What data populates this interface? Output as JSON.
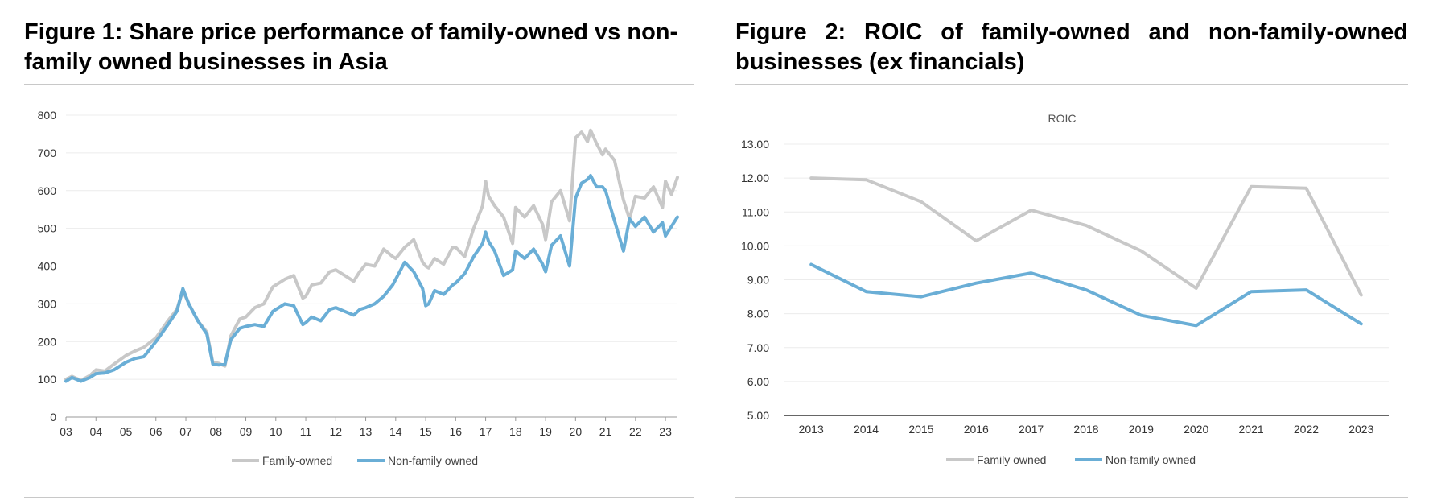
{
  "figure1": {
    "title": "Figure 1: Share price performance of family-owned vs non-family owned businesses in Asia",
    "colors": {
      "family": "#c8c8c8",
      "nonfamily": "#6aaed6"
    },
    "chart_data": {
      "type": "line",
      "x_tick_labels": [
        "03",
        "04",
        "05",
        "06",
        "07",
        "08",
        "09",
        "10",
        "11",
        "12",
        "13",
        "14",
        "15",
        "16",
        "17",
        "18",
        "19",
        "20",
        "21",
        "22",
        "23"
      ],
      "x_range": [
        2003.0,
        2023.4
      ],
      "ylim": [
        0,
        800
      ],
      "y_ticks": [
        0,
        100,
        200,
        300,
        400,
        500,
        600,
        700,
        800
      ],
      "grid": true,
      "legend_position": "bottom",
      "series": [
        {
          "name": "Family-owned",
          "x": [
            2003.0,
            2003.2,
            2003.5,
            2003.8,
            2004.0,
            2004.3,
            2004.6,
            2005.0,
            2005.3,
            2005.6,
            2006.0,
            2006.4,
            2006.7,
            2006.9,
            2007.1,
            2007.4,
            2007.7,
            2007.9,
            2008.1,
            2008.3,
            2008.5,
            2008.8,
            2009.0,
            2009.3,
            2009.6,
            2009.9,
            2010.0,
            2010.3,
            2010.6,
            2010.9,
            2011.0,
            2011.2,
            2011.5,
            2011.8,
            2012.0,
            2012.3,
            2012.6,
            2012.8,
            2013.0,
            2013.3,
            2013.6,
            2013.9,
            2014.0,
            2014.3,
            2014.6,
            2014.9,
            2015.0,
            2015.1,
            2015.3,
            2015.6,
            2015.9,
            2016.0,
            2016.3,
            2016.6,
            2016.9,
            2017.0,
            2017.1,
            2017.3,
            2017.6,
            2017.9,
            2018.0,
            2018.3,
            2018.6,
            2018.9,
            2019.0,
            2019.2,
            2019.5,
            2019.8,
            2020.0,
            2020.2,
            2020.4,
            2020.5,
            2020.7,
            2020.9,
            2021.0,
            2021.3,
            2021.6,
            2021.8,
            2022.0,
            2022.3,
            2022.6,
            2022.9,
            2023.0,
            2023.2,
            2023.4
          ],
          "values": [
            100,
            108,
            97,
            110,
            125,
            122,
            140,
            163,
            175,
            185,
            210,
            255,
            285,
            335,
            300,
            255,
            225,
            145,
            142,
            135,
            215,
            260,
            265,
            290,
            300,
            345,
            350,
            365,
            375,
            315,
            320,
            350,
            355,
            385,
            390,
            375,
            360,
            385,
            405,
            400,
            445,
            425,
            420,
            450,
            470,
            410,
            400,
            395,
            420,
            405,
            450,
            450,
            425,
            500,
            560,
            625,
            585,
            560,
            530,
            460,
            555,
            530,
            560,
            510,
            470,
            570,
            600,
            520,
            740,
            755,
            730,
            760,
            725,
            695,
            710,
            680,
            575,
            525,
            585,
            580,
            610,
            555,
            625,
            590,
            635
          ]
        },
        {
          "name": "Non-family owned",
          "x": [
            2003.0,
            2003.2,
            2003.5,
            2003.8,
            2004.0,
            2004.3,
            2004.6,
            2005.0,
            2005.3,
            2005.6,
            2006.0,
            2006.4,
            2006.7,
            2006.9,
            2007.1,
            2007.4,
            2007.7,
            2007.9,
            2008.1,
            2008.3,
            2008.5,
            2008.8,
            2009.0,
            2009.3,
            2009.6,
            2009.9,
            2010.0,
            2010.3,
            2010.6,
            2010.9,
            2011.0,
            2011.2,
            2011.5,
            2011.8,
            2012.0,
            2012.3,
            2012.6,
            2012.8,
            2013.0,
            2013.3,
            2013.6,
            2013.9,
            2014.0,
            2014.3,
            2014.6,
            2014.9,
            2015.0,
            2015.1,
            2015.3,
            2015.6,
            2015.9,
            2016.0,
            2016.3,
            2016.6,
            2016.9,
            2017.0,
            2017.1,
            2017.3,
            2017.6,
            2017.9,
            2018.0,
            2018.3,
            2018.6,
            2018.9,
            2019.0,
            2019.2,
            2019.5,
            2019.8,
            2020.0,
            2020.2,
            2020.4,
            2020.5,
            2020.7,
            2020.9,
            2021.0,
            2021.3,
            2021.6,
            2021.8,
            2022.0,
            2022.3,
            2022.6,
            2022.9,
            2023.0,
            2023.2,
            2023.4
          ],
          "values": [
            95,
            105,
            95,
            105,
            115,
            117,
            125,
            145,
            155,
            160,
            200,
            245,
            280,
            340,
            300,
            255,
            220,
            140,
            138,
            140,
            205,
            235,
            240,
            245,
            240,
            280,
            285,
            300,
            295,
            245,
            250,
            265,
            255,
            285,
            290,
            280,
            270,
            285,
            290,
            300,
            320,
            350,
            365,
            410,
            385,
            340,
            295,
            300,
            335,
            325,
            350,
            355,
            380,
            425,
            460,
            490,
            465,
            440,
            375,
            390,
            440,
            420,
            445,
            405,
            385,
            455,
            480,
            400,
            580,
            620,
            630,
            640,
            610,
            610,
            600,
            520,
            440,
            525,
            505,
            530,
            490,
            515,
            480,
            505,
            530
          ]
        }
      ]
    }
  },
  "figure2": {
    "title": "Figure 2: ROIC of family-owned and non-family-owned businesses (ex financials)",
    "colors": {
      "family": "#c8c8c8",
      "nonfamily": "#6aaed6"
    },
    "chart_data": {
      "type": "line",
      "title": "ROIC",
      "categories": [
        "2013",
        "2014",
        "2015",
        "2016",
        "2017",
        "2018",
        "2019",
        "2020",
        "2021",
        "2022",
        "2023"
      ],
      "ylim": [
        5,
        13
      ],
      "y_ticks": [
        "5.00",
        "6.00",
        "7.00",
        "8.00",
        "9.00",
        "10.00",
        "11.00",
        "12.00",
        "13.00"
      ],
      "grid": true,
      "legend_position": "bottom",
      "series": [
        {
          "name": "Family owned",
          "values": [
            12.0,
            11.95,
            11.3,
            10.15,
            11.05,
            10.6,
            9.85,
            8.75,
            11.75,
            11.7,
            8.55
          ]
        },
        {
          "name": "Non-family owned",
          "values": [
            9.45,
            8.65,
            8.5,
            8.9,
            9.2,
            8.7,
            7.95,
            7.65,
            8.65,
            8.7,
            7.7
          ]
        }
      ]
    }
  }
}
